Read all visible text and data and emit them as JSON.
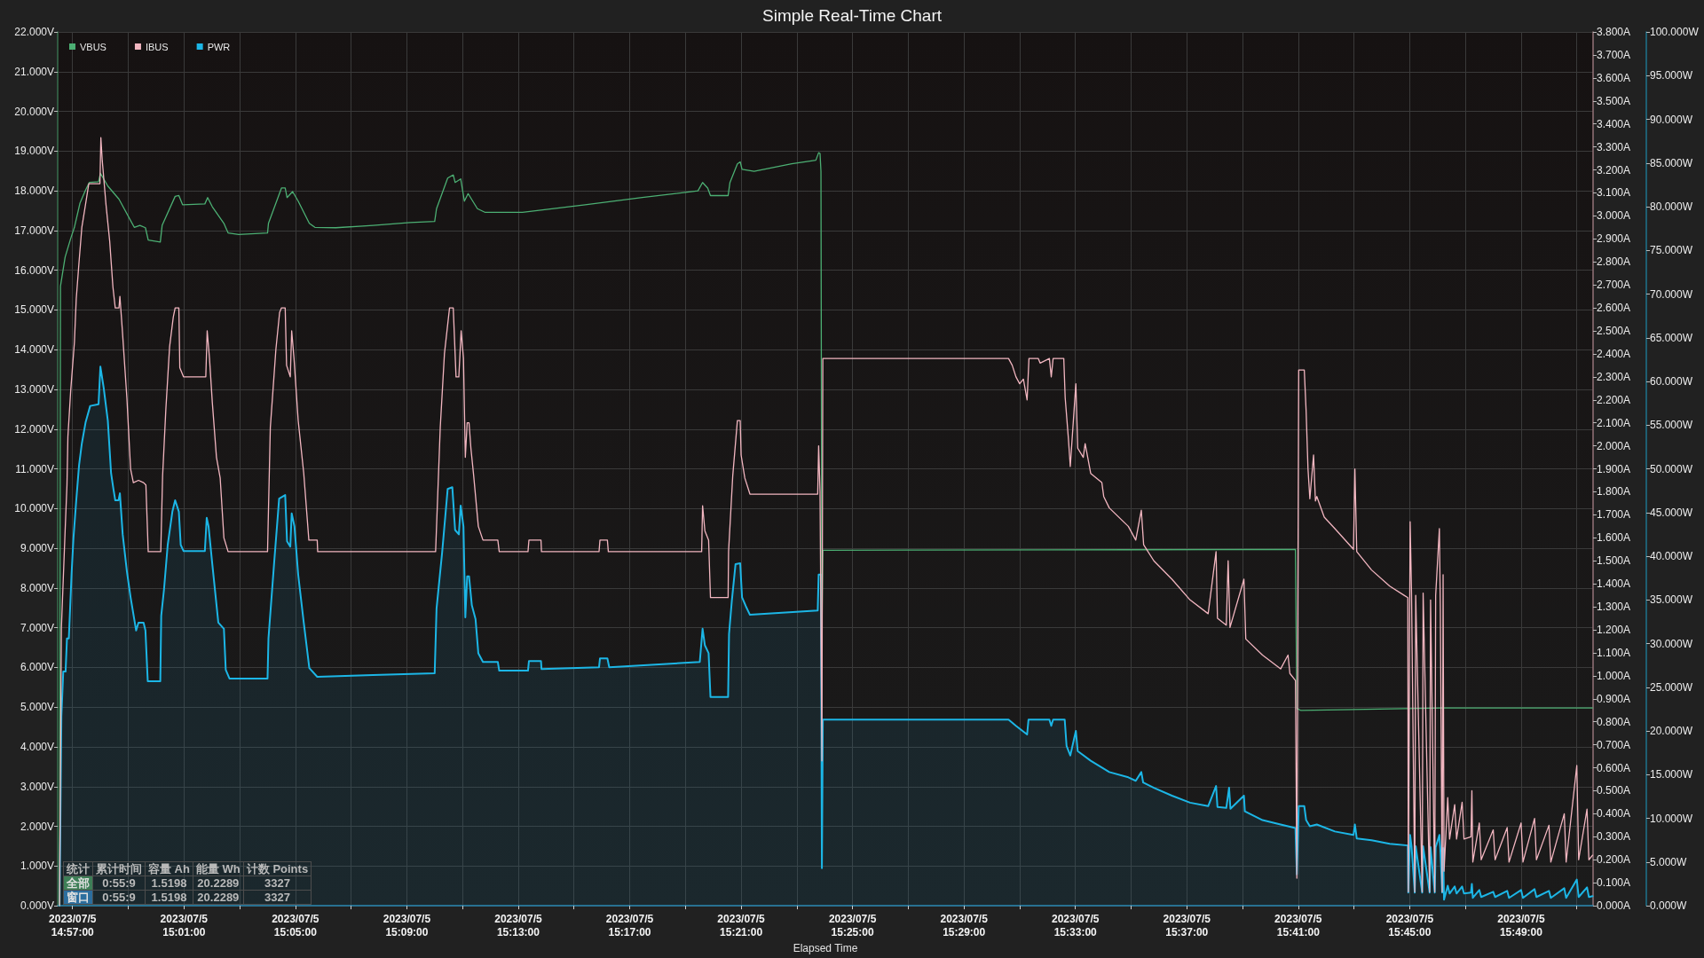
{
  "chart_data": {
    "type": "line",
    "title": "Simple Real-Time Chart",
    "xlabel": "Elapsed Time",
    "xlim": [
      "2023-07-05T14:56:28",
      "2023-07-05T15:51:35"
    ],
    "xticks": [
      {
        "value": "2023-07-05T14:57",
        "label": "2023/07/5\n14:57:00"
      },
      {
        "value": "2023-07-05T14:59",
        "label": null
      },
      {
        "value": "2023-07-05T15:01",
        "label": "2023/07/5\n15:01:00"
      },
      {
        "value": "2023-07-05T15:03",
        "label": null
      },
      {
        "value": "2023-07-05T15:05",
        "label": "2023/07/5\n15:05:00"
      },
      {
        "value": "2023-07-05T15:07",
        "label": null
      },
      {
        "value": "2023-07-05T15:09",
        "label": "2023/07/5\n15:09:00"
      },
      {
        "value": "2023-07-05T15:11",
        "label": null
      },
      {
        "value": "2023-07-05T15:13",
        "label": "2023/07/5\n15:13:00"
      },
      {
        "value": "2023-07-05T15:15",
        "label": null
      },
      {
        "value": "2023-07-05T15:17",
        "label": "2023/07/5\n15:17:00"
      },
      {
        "value": "2023-07-05T15:19",
        "label": null
      },
      {
        "value": "2023-07-05T15:21",
        "label": "2023/07/5\n15:21:00"
      },
      {
        "value": "2023-07-05T15:23",
        "label": null
      },
      {
        "value": "2023-07-05T15:25",
        "label": "2023/07/5\n15:25:00"
      },
      {
        "value": "2023-07-05T15:27",
        "label": null
      },
      {
        "value": "2023-07-05T15:29",
        "label": "2023/07/5\n15:29:00"
      },
      {
        "value": "2023-07-05T15:31",
        "label": null
      },
      {
        "value": "2023-07-05T15:33",
        "label": "2023/07/5\n15:33:00"
      },
      {
        "value": "2023-07-05T15:35",
        "label": null
      },
      {
        "value": "2023-07-05T15:37",
        "label": "2023/07/5\n15:37:00"
      },
      {
        "value": "2023-07-05T15:39",
        "label": null
      },
      {
        "value": "2023-07-05T15:41",
        "label": "2023/07/5\n15:41:00"
      },
      {
        "value": "2023-07-05T15:43",
        "label": null
      },
      {
        "value": "2023-07-05T15:45",
        "label": "2023/07/5\n15:45:00"
      },
      {
        "value": "2023-07-05T15:47",
        "label": null
      },
      {
        "value": "2023-07-05T15:49",
        "label": "2023/07/5\n15:49:00"
      },
      {
        "value": "2023-07-05T15:51",
        "label": null
      }
    ],
    "ylim": [
      0,
      22
    ],
    "yticks": [
      {
        "value": 0,
        "label": "0.000V"
      },
      {
        "value": 1,
        "label": "1.000V"
      },
      {
        "value": 2,
        "label": "2.000V"
      },
      {
        "value": 3,
        "label": "3.000V"
      },
      {
        "value": 4,
        "label": "4.000V"
      },
      {
        "value": 5,
        "label": "5.000V"
      },
      {
        "value": 6,
        "label": "6.000V"
      },
      {
        "value": 7,
        "label": "7.000V"
      },
      {
        "value": 8,
        "label": "8.000V"
      },
      {
        "value": 9,
        "label": "9.000V"
      },
      {
        "value": 10,
        "label": "10.000V"
      },
      {
        "value": 11,
        "label": "11.000V"
      },
      {
        "value": 12,
        "label": "12.000V"
      },
      {
        "value": 13,
        "label": "13.000V"
      },
      {
        "value": 14,
        "label": "14.000V"
      },
      {
        "value": 15,
        "label": "15.000V"
      },
      {
        "value": 16,
        "label": "16.000V"
      },
      {
        "value": 17,
        "label": "17.000V"
      },
      {
        "value": 18,
        "label": "18.000V"
      },
      {
        "value": 19,
        "label": "19.000V"
      },
      {
        "value": 20,
        "label": "20.000V"
      },
      {
        "value": 21,
        "label": "21.000V"
      },
      {
        "value": 22,
        "label": "22.000V"
      }
    ],
    "y2lim": [
      0,
      3.8
    ],
    "y2ticks": [
      {
        "value": 0,
        "label": "0.000A"
      },
      {
        "value": 0.1,
        "label": "0.100A"
      },
      {
        "value": 0.2,
        "label": "0.200A"
      },
      {
        "value": 0.3,
        "label": "0.300A"
      },
      {
        "value": 0.4,
        "label": "0.400A"
      },
      {
        "value": 0.5,
        "label": "0.500A"
      },
      {
        "value": 0.6,
        "label": "0.600A"
      },
      {
        "value": 0.7,
        "label": "0.700A"
      },
      {
        "value": 0.8,
        "label": "0.800A"
      },
      {
        "value": 0.9,
        "label": "0.900A"
      },
      {
        "value": 1,
        "label": "1.000A"
      },
      {
        "value": 1.1,
        "label": "1.100A"
      },
      {
        "value": 1.2,
        "label": "1.200A"
      },
      {
        "value": 1.3,
        "label": "1.300A"
      },
      {
        "value": 1.4,
        "label": "1.400A"
      },
      {
        "value": 1.5,
        "label": "1.500A"
      },
      {
        "value": 1.6,
        "label": "1.600A"
      },
      {
        "value": 1.7,
        "label": "1.700A"
      },
      {
        "value": 1.8,
        "label": "1.800A"
      },
      {
        "value": 1.9,
        "label": "1.900A"
      },
      {
        "value": 2,
        "label": "2.000A"
      },
      {
        "value": 2.1,
        "label": "2.100A"
      },
      {
        "value": 2.2,
        "label": "2.200A"
      },
      {
        "value": 2.3,
        "label": "2.300A"
      },
      {
        "value": 2.4,
        "label": "2.400A"
      },
      {
        "value": 2.5,
        "label": "2.500A"
      },
      {
        "value": 2.6,
        "label": "2.600A"
      },
      {
        "value": 2.7,
        "label": "2.700A"
      },
      {
        "value": 2.8,
        "label": "2.800A"
      },
      {
        "value": 2.9,
        "label": "2.900A"
      },
      {
        "value": 3,
        "label": "3.000A"
      },
      {
        "value": 3.1,
        "label": "3.100A"
      },
      {
        "value": 3.2,
        "label": "3.200A"
      },
      {
        "value": 3.3,
        "label": "3.300A"
      },
      {
        "value": 3.4,
        "label": "3.400A"
      },
      {
        "value": 3.5,
        "label": "3.500A"
      },
      {
        "value": 3.6,
        "label": "3.600A"
      },
      {
        "value": 3.7,
        "label": "3.700A"
      },
      {
        "value": 3.8,
        "label": "3.800A"
      }
    ],
    "y3lim": [
      0,
      100
    ],
    "y3ticks": [
      {
        "value": 0,
        "label": "0.000W"
      },
      {
        "value": 5,
        "label": "5.000W"
      },
      {
        "value": 10,
        "label": "10.000W"
      },
      {
        "value": 15,
        "label": "15.000W"
      },
      {
        "value": 20,
        "label": "20.000W"
      },
      {
        "value": 25,
        "label": "25.000W"
      },
      {
        "value": 30,
        "label": "30.000W"
      },
      {
        "value": 35,
        "label": "35.000W"
      },
      {
        "value": 40,
        "label": "40.000W"
      },
      {
        "value": 45,
        "label": "45.000W"
      },
      {
        "value": 50,
        "label": "50.000W"
      },
      {
        "value": 55,
        "label": "55.000W"
      },
      {
        "value": 60,
        "label": "60.000W"
      },
      {
        "value": 65,
        "label": "65.000W"
      },
      {
        "value": 70,
        "label": "70.000W"
      },
      {
        "value": 75,
        "label": "75.000W"
      },
      {
        "value": 80,
        "label": "80.000W"
      },
      {
        "value": 85,
        "label": "85.000W"
      },
      {
        "value": 90,
        "label": "90.000W"
      },
      {
        "value": 95,
        "label": "95.000W"
      },
      {
        "value": 100,
        "label": "100.000W"
      }
    ],
    "grid": true,
    "legend": "top left",
    "marker": "none",
    "series": [
      {
        "name": "VBUS",
        "color": "#4caf73",
        "x": [
          "2023-07-05T14:56:32",
          "2023-07-05T14:56:34",
          "2023-07-05T14:56:44",
          "2023-07-05T14:56:56",
          "2023-07-05T14:57:04",
          "2023-07-05T14:57:16",
          "2023-07-05T14:57:28",
          "2023-07-05T14:57:36",
          "2023-07-05T14:57:56",
          "2023-07-05T14:58:00",
          "2023-07-05T14:58:16",
          "2023-07-05T14:58:40",
          "2023-07-05T14:59:13",
          "2023-07-05T14:59:25",
          "2023-07-05T14:59:37",
          "2023-07-05T14:59:43",
          "2023-07-05T15:00:09",
          "2023-07-05T15:00:13",
          "2023-07-05T15:00:41",
          "2023-07-05T15:00:49",
          "2023-07-05T15:00:57",
          "2023-07-05T15:01:45",
          "2023-07-05T15:01:51",
          "2023-07-05T15:02:01",
          "2023-07-05T15:02:26",
          "2023-07-05T15:02:35",
          "2023-07-05T15:02:58",
          "2023-07-05T15:04:00",
          "2023-07-05T15:04:02",
          "2023-07-05T15:04:30",
          "2023-07-05T15:04:38",
          "2023-07-05T15:04:42",
          "2023-07-05T15:04:54",
          "2023-07-05T15:05:06",
          "2023-07-05T15:05:30",
          "2023-07-05T15:05:42",
          "2023-07-05T15:06:27",
          "2023-07-05T15:07:47",
          "2023-07-05T15:09:07",
          "2023-07-05T15:10:00",
          "2023-07-05T15:10:04",
          "2023-07-05T15:10:28",
          "2023-07-05T15:10:40",
          "2023-07-05T15:10:44",
          "2023-07-05T15:10:56",
          "2023-07-05T15:11:04",
          "2023-07-05T15:11:12",
          "2023-07-05T15:11:32",
          "2023-07-05T15:11:48",
          "2023-07-05T15:13:09",
          "2023-07-05T15:15:24",
          "2023-07-05T15:17:27",
          "2023-07-05T15:19:27",
          "2023-07-05T15:19:37",
          "2023-07-05T15:19:48",
          "2023-07-05T15:19:54",
          "2023-07-05T15:20:32",
          "2023-07-05T15:20:36",
          "2023-07-05T15:20:52",
          "2023-07-05T15:20:58",
          "2023-07-05T15:21:02",
          "2023-07-05T15:21:28",
          "2023-07-05T15:22:49",
          "2023-07-05T15:23:41",
          "2023-07-05T15:23:47",
          "2023-07-05T15:23:50",
          "2023-07-05T15:23:52",
          "2023-07-05T15:23:54",
          "2023-07-05T15:23:56",
          "2023-07-05T15:32:00",
          "2023-07-05T15:40:54",
          "2023-07-05T15:40:57",
          "2023-07-05T15:41:05",
          "2023-07-05T15:46:14",
          "2023-07-05T15:51:34"
        ],
        "values": [
          0,
          15.6,
          16.33,
          16.8,
          17.08,
          17.69,
          18.02,
          18.21,
          18.23,
          18.44,
          18.12,
          17.79,
          17.08,
          17.13,
          17.07,
          16.76,
          16.71,
          17.13,
          17.86,
          17.88,
          17.65,
          17.67,
          17.83,
          17.6,
          17.18,
          16.94,
          16.9,
          16.94,
          17.18,
          18.07,
          18.07,
          17.83,
          17.98,
          17.74,
          17.18,
          17.08,
          17.07,
          17.13,
          17.2,
          17.23,
          17.55,
          18.32,
          18.4,
          18.21,
          18.3,
          17.74,
          17.93,
          17.55,
          17.46,
          17.46,
          17.65,
          17.83,
          18,
          18.21,
          18.07,
          17.88,
          17.88,
          18.21,
          18.68,
          18.73,
          18.54,
          18.49,
          18.68,
          18.77,
          18.96,
          18.94,
          18.49,
          6.74,
          8.95,
          8.96,
          8.97,
          4.97,
          4.92,
          4.98,
          4.98
        ]
      },
      {
        "name": "IBUS",
        "color": "#f2b6c0",
        "axis": "y2",
        "x": [
          "2023-07-05T14:56:32",
          "2023-07-05T14:56:36",
          "2023-07-05T14:56:44",
          "2023-07-05T14:56:48",
          "2023-07-05T14:56:50",
          "2023-07-05T14:56:56",
          "2023-07-05T14:57:04",
          "2023-07-05T14:57:08",
          "2023-07-05T14:57:14",
          "2023-07-05T14:57:20",
          "2023-07-05T14:57:28",
          "2023-07-05T14:57:35",
          "2023-07-05T14:57:59",
          "2023-07-05T14:58:01",
          "2023-07-05T14:58:04",
          "2023-07-05T14:58:12",
          "2023-07-05T14:58:20",
          "2023-07-05T14:58:27",
          "2023-07-05T14:58:32",
          "2023-07-05T14:58:40",
          "2023-07-05T14:58:42",
          "2023-07-05T14:58:47",
          "2023-07-05T14:58:57",
          "2023-07-05T14:59:05",
          "2023-07-05T14:59:11",
          "2023-07-05T14:59:22",
          "2023-07-05T14:59:33",
          "2023-07-05T14:59:38",
          "2023-07-05T14:59:43",
          "2023-07-05T15:00:10",
          "2023-07-05T15:00:14",
          "2023-07-05T15:00:21",
          "2023-07-05T15:00:29",
          "2023-07-05T15:00:37",
          "2023-07-05T15:00:41",
          "2023-07-05T15:00:49",
          "2023-07-05T15:00:51",
          "2023-07-05T15:00:59",
          "2023-07-05T15:01:47",
          "2023-07-05T15:01:50",
          "2023-07-05T15:01:55",
          "2023-07-05T15:02:01",
          "2023-07-05T15:02:10",
          "2023-07-05T15:02:18",
          "2023-07-05T15:02:26",
          "2023-07-05T15:02:35",
          "2023-07-05T15:04:00",
          "2023-07-05T15:04:06",
          "2023-07-05T15:04:18",
          "2023-07-05T15:04:26",
          "2023-07-05T15:04:30",
          "2023-07-05T15:04:38",
          "2023-07-05T15:04:41",
          "2023-07-05T15:04:49",
          "2023-07-05T15:04:52",
          "2023-07-05T15:04:57",
          "2023-07-05T15:05:06",
          "2023-07-05T15:05:18",
          "2023-07-05T15:05:29",
          "2023-07-05T15:05:47",
          "2023-07-05T15:05:48",
          "2023-07-05T15:10:02",
          "2023-07-05T15:10:12",
          "2023-07-05T15:10:21",
          "2023-07-05T15:10:32",
          "2023-07-05T15:10:40",
          "2023-07-05T15:10:46",
          "2023-07-05T15:10:52",
          "2023-07-05T15:10:57",
          "2023-07-05T15:11:02",
          "2023-07-05T15:11:06",
          "2023-07-05T15:11:10",
          "2023-07-05T15:11:14",
          "2023-07-05T15:11:18",
          "2023-07-05T15:11:24",
          "2023-07-05T15:11:34",
          "2023-07-05T15:11:44",
          "2023-07-05T15:12:16",
          "2023-07-05T15:12:19",
          "2023-07-05T15:13:21",
          "2023-07-05T15:13:23",
          "2023-07-05T15:13:49",
          "2023-07-05T15:13:50",
          "2023-07-05T15:15:54",
          "2023-07-05T15:15:56",
          "2023-07-05T15:16:12",
          "2023-07-05T15:16:14",
          "2023-07-05T15:19:35",
          "2023-07-05T15:19:37",
          "2023-07-05T15:19:42",
          "2023-07-05T15:19:50",
          "2023-07-05T15:19:54",
          "2023-07-05T15:20:32",
          "2023-07-05T15:20:33",
          "2023-07-05T15:20:42",
          "2023-07-05T15:20:52",
          "2023-07-05T15:20:58",
          "2023-07-05T15:21:00",
          "2023-07-05T15:21:08",
          "2023-07-05T15:21:19",
          "2023-07-05T15:23:45",
          "2023-07-05T15:23:47",
          "2023-07-05T15:23:50",
          "2023-07-05T15:23:54",
          "2023-07-05T15:23:56",
          "2023-07-05T15:30:36",
          "2023-07-05T15:30:44",
          "2023-07-05T15:30:52",
          "2023-07-05T15:31:00",
          "2023-07-05T15:31:08",
          "2023-07-05T15:31:16",
          "2023-07-05T15:31:20",
          "2023-07-05T15:31:40",
          "2023-07-05T15:31:44",
          "2023-07-05T15:32:04",
          "2023-07-05T15:32:08",
          "2023-07-05T15:32:12",
          "2023-07-05T15:32:35",
          "2023-07-05T15:32:38",
          "2023-07-05T15:32:45",
          "2023-07-05T15:32:49",
          "2023-07-05T15:33:01",
          "2023-07-05T15:33:05",
          "2023-07-05T15:33:17",
          "2023-07-05T15:33:21",
          "2023-07-05T15:33:33",
          "2023-07-05T15:33:57",
          "2023-07-05T15:34:01",
          "2023-07-05T15:34:13",
          "2023-07-05T15:34:54",
          "2023-07-05T15:35:10",
          "2023-07-05T15:35:22",
          "2023-07-05T15:35:27",
          "2023-07-05T15:35:49",
          "2023-07-05T15:36:28",
          "2023-07-05T15:37:07",
          "2023-07-05T15:37:46",
          "2023-07-05T15:38:03",
          "2023-07-05T15:38:06",
          "2023-07-05T15:38:25",
          "2023-07-05T15:38:29",
          "2023-07-05T15:38:33",
          "2023-07-05T15:39:03",
          "2023-07-05T15:39:07",
          "2023-07-05T15:39:43",
          "2023-07-05T15:40:22",
          "2023-07-05T15:40:38",
          "2023-07-05T15:40:42",
          "2023-07-05T15:40:54",
          "2023-07-05T15:40:57",
          "2023-07-05T15:41:01",
          "2023-07-05T15:41:13",
          "2023-07-05T15:41:17",
          "2023-07-05T15:41:21",
          "2023-07-05T15:41:25",
          "2023-07-05T15:41:33",
          "2023-07-05T15:41:37",
          "2023-07-05T15:41:40",
          "2023-07-05T15:41:56",
          "2023-07-05T15:42:19",
          "2023-07-05T15:42:59",
          "2023-07-05T15:43:02",
          "2023-07-05T15:43:06",
          "2023-07-05T15:43:38",
          "2023-07-05T15:44:17",
          "2023-07-05T15:44:48",
          "2023-07-05T15:44:56",
          "2023-07-05T15:44:57",
          "2023-07-05T15:45:01",
          "2023-07-05T15:45:04",
          "2023-07-05T15:45:11",
          "2023-07-05T15:45:13",
          "2023-07-05T15:45:27",
          "2023-07-05T15:45:29",
          "2023-07-05T15:45:43",
          "2023-07-05T15:45:45",
          "2023-07-05T15:45:54",
          "2023-07-05T15:45:56",
          "2023-07-05T15:46:04",
          "2023-07-05T15:46:06",
          "2023-07-05T15:46:10",
          "2023-07-05T15:46:12",
          "2023-07-05T15:46:14",
          "2023-07-05T15:46:18",
          "2023-07-05T15:46:22",
          "2023-07-05T15:46:26",
          "2023-07-05T15:46:37",
          "2023-07-05T15:46:41",
          "2023-07-05T15:46:53",
          "2023-07-05T15:46:57",
          "2023-07-05T15:47:12",
          "2023-07-05T15:47:14",
          "2023-07-05T15:47:16",
          "2023-07-05T15:47:30",
          "2023-07-05T15:47:34",
          "2023-07-05T15:48:00",
          "2023-07-05T15:48:04",
          "2023-07-05T15:48:30",
          "2023-07-05T15:48:34",
          "2023-07-05T15:49:00",
          "2023-07-05T15:49:04",
          "2023-07-05T15:49:29",
          "2023-07-05T15:49:33",
          "2023-07-05T15:50:00",
          "2023-07-05T15:50:04",
          "2023-07-05T15:50:33",
          "2023-07-05T15:50:37",
          "2023-07-05T15:51:00",
          "2023-07-05T15:51:04",
          "2023-07-05T15:51:22",
          "2023-07-05T15:51:26",
          "2023-07-05T15:51:34"
        ],
        "values": [
          0,
          1.21,
          1.63,
          1.83,
          2.04,
          2.24,
          2.45,
          2.64,
          2.8,
          2.95,
          3.05,
          3.14,
          3.14,
          3.34,
          3.24,
          3.05,
          2.89,
          2.69,
          2.6,
          2.6,
          2.65,
          2.51,
          2.21,
          1.9,
          1.84,
          1.85,
          1.84,
          1.83,
          1.54,
          1.54,
          1.87,
          2.16,
          2.43,
          2.56,
          2.6,
          2.6,
          2.34,
          2.3,
          2.3,
          2.5,
          2.38,
          2.19,
          1.95,
          1.86,
          1.6,
          1.54,
          1.54,
          2.08,
          2.42,
          2.58,
          2.6,
          2.6,
          2.35,
          2.3,
          2.5,
          2.38,
          2.11,
          1.88,
          1.59,
          1.59,
          1.54,
          1.54,
          2.08,
          2.4,
          2.6,
          2.6,
          2.3,
          2.3,
          2.5,
          2.38,
          1.95,
          2.1,
          2.1,
          1.99,
          1.87,
          1.65,
          1.59,
          1.59,
          1.54,
          1.54,
          1.59,
          1.59,
          1.54,
          1.54,
          1.59,
          1.59,
          1.54,
          1.54,
          1.74,
          1.63,
          1.59,
          1.34,
          1.34,
          1.54,
          1.87,
          2.11,
          2.11,
          1.96,
          1.86,
          1.79,
          1.79,
          2,
          1.8,
          0.63,
          2.38,
          2.38,
          2.35,
          2.3,
          2.27,
          2.29,
          2.2,
          2.38,
          2.38,
          2.36,
          2.38,
          2.3,
          2.38,
          2.38,
          2.21,
          2.03,
          1.91,
          2.27,
          1.99,
          1.95,
          2.01,
          1.88,
          1.84,
          1.78,
          1.73,
          1.65,
          1.59,
          1.72,
          1.57,
          1.5,
          1.42,
          1.33,
          1.27,
          1.54,
          1.25,
          1.22,
          1.5,
          1.21,
          1.42,
          1.16,
          1.09,
          1.03,
          1.09,
          1.01,
          0.98,
          0.12,
          2.33,
          2.33,
          2.15,
          1.9,
          1.77,
          1.96,
          1.76,
          1.78,
          1.69,
          1.64,
          1.55,
          1.9,
          1.54,
          1.46,
          1.39,
          1.35,
          1.34,
          0.06,
          1.67,
          1.36,
          0.06,
          1.35,
          0.06,
          1.36,
          0.06,
          1.33,
          0.06,
          1.35,
          1.64,
          1.3,
          0.06,
          1.44,
          0.15,
          0.31,
          0.47,
          0.29,
          0.44,
          0.29,
          0.45,
          0.29,
          0.3,
          0.5,
          0.19,
          0.36,
          0.2,
          0.33,
          0.2,
          0.34,
          0.19,
          0.36,
          0.19,
          0.38,
          0.2,
          0.35,
          0.19,
          0.4,
          0.19,
          0.61,
          0.2,
          0.42,
          0.2,
          0.22
        ]
      },
      {
        "name": "PWR",
        "type": "area",
        "color": "#1cb6e6",
        "axis": "y3",
        "x": [
          "2023-07-05T14:56:32",
          "2023-07-05T14:56:36",
          "2023-07-05T14:56:40",
          "2023-07-05T14:56:45",
          "2023-07-05T14:56:48",
          "2023-07-05T14:56:52",
          "2023-07-05T14:56:58",
          "2023-07-05T14:57:02",
          "2023-07-05T14:57:08",
          "2023-07-05T14:57:14",
          "2023-07-05T14:57:20",
          "2023-07-05T14:57:28",
          "2023-07-05T14:57:38",
          "2023-07-05T14:57:56",
          "2023-07-05T14:58:00",
          "2023-07-05T14:58:07",
          "2023-07-05T14:58:16",
          "2023-07-05T14:58:23",
          "2023-07-05T14:58:28",
          "2023-07-05T14:58:32",
          "2023-07-05T14:58:39",
          "2023-07-05T14:58:42",
          "2023-07-05T14:58:48",
          "2023-07-05T14:58:57",
          "2023-07-05T14:59:05",
          "2023-07-05T14:59:17",
          "2023-07-05T14:59:22",
          "2023-07-05T14:59:33",
          "2023-07-05T14:59:37",
          "2023-07-05T14:59:42",
          "2023-07-05T15:00:09",
          "2023-07-05T15:00:11",
          "2023-07-05T15:00:17",
          "2023-07-05T15:00:25",
          "2023-07-05T15:00:35",
          "2023-07-05T15:00:41",
          "2023-07-05T15:00:49",
          "2023-07-05T15:00:53",
          "2023-07-05T15:00:59",
          "2023-07-05T15:01:45",
          "2023-07-05T15:01:49",
          "2023-07-05T15:01:53",
          "2023-07-05T15:02:01",
          "2023-07-05T15:02:14",
          "2023-07-05T15:02:26",
          "2023-07-05T15:02:30",
          "2023-07-05T15:02:38",
          "2023-07-05T15:04:00",
          "2023-07-05T15:04:02",
          "2023-07-05T15:04:14",
          "2023-07-05T15:04:25",
          "2023-07-05T15:04:38",
          "2023-07-05T15:04:42",
          "2023-07-05T15:04:49",
          "2023-07-05T15:04:52",
          "2023-07-05T15:04:58",
          "2023-07-05T15:05:06",
          "2023-07-05T15:05:18",
          "2023-07-05T15:05:30",
          "2023-07-05T15:05:47",
          "2023-07-05T15:07:47",
          "2023-07-05T15:10:00",
          "2023-07-05T15:10:04",
          "2023-07-05T15:10:16",
          "2023-07-05T15:10:28",
          "2023-07-05T15:10:38",
          "2023-07-05T15:10:44",
          "2023-07-05T15:10:52",
          "2023-07-05T15:10:56",
          "2023-07-05T15:11:02",
          "2023-07-05T15:11:06",
          "2023-07-05T15:11:10",
          "2023-07-05T15:11:14",
          "2023-07-05T15:11:20",
          "2023-07-05T15:11:28",
          "2023-07-05T15:11:34",
          "2023-07-05T15:11:44",
          "2023-07-05T15:12:16",
          "2023-07-05T15:12:19",
          "2023-07-05T15:13:21",
          "2023-07-05T15:13:23",
          "2023-07-05T15:13:49",
          "2023-07-05T15:13:50",
          "2023-07-05T15:15:54",
          "2023-07-05T15:15:56",
          "2023-07-05T15:16:12",
          "2023-07-05T15:16:16",
          "2023-07-05T15:19:31",
          "2023-07-05T15:19:37",
          "2023-07-05T15:19:42",
          "2023-07-05T15:19:50",
          "2023-07-05T15:19:54",
          "2023-07-05T15:20:32",
          "2023-07-05T15:20:34",
          "2023-07-05T15:20:40",
          "2023-07-05T15:20:48",
          "2023-07-05T15:20:58",
          "2023-07-05T15:21:02",
          "2023-07-05T15:21:10",
          "2023-07-05T15:21:19",
          "2023-07-05T15:23:45",
          "2023-07-05T15:23:47",
          "2023-07-05T15:23:52",
          "2023-07-05T15:23:54",
          "2023-07-05T15:23:56",
          "2023-07-05T15:30:36",
          "2023-07-05T15:30:52",
          "2023-07-05T15:31:16",
          "2023-07-05T15:31:19",
          "2023-07-05T15:32:04",
          "2023-07-05T15:32:08",
          "2023-07-05T15:32:12",
          "2023-07-05T15:32:37",
          "2023-07-05T15:32:41",
          "2023-07-05T15:32:49",
          "2023-07-05T15:33:01",
          "2023-07-05T15:33:05",
          "2023-07-05T15:33:33",
          "2023-07-05T15:34:13",
          "2023-07-05T15:34:54",
          "2023-07-05T15:35:10",
          "2023-07-05T15:35:22",
          "2023-07-05T15:35:26",
          "2023-07-05T15:35:49",
          "2023-07-05T15:36:28",
          "2023-07-05T15:37:07",
          "2023-07-05T15:37:46",
          "2023-07-05T15:38:03",
          "2023-07-05T15:38:06",
          "2023-07-05T15:38:25",
          "2023-07-05T15:38:31",
          "2023-07-05T15:38:34",
          "2023-07-05T15:39:03",
          "2023-07-05T15:39:05",
          "2023-07-05T15:39:43",
          "2023-07-05T15:40:22",
          "2023-07-05T15:40:54",
          "2023-07-05T15:40:57",
          "2023-07-05T15:41:01",
          "2023-07-05T15:41:13",
          "2023-07-05T15:41:17",
          "2023-07-05T15:41:25",
          "2023-07-05T15:41:40",
          "2023-07-05T15:42:19",
          "2023-07-05T15:42:59",
          "2023-07-05T15:43:02",
          "2023-07-05T15:43:06",
          "2023-07-05T15:43:38",
          "2023-07-05T15:44:17",
          "2023-07-05T15:44:56",
          "2023-07-05T15:44:57",
          "2023-07-05T15:45:01",
          "2023-07-05T15:45:04",
          "2023-07-05T15:45:11",
          "2023-07-05T15:45:13",
          "2023-07-05T15:45:27",
          "2023-07-05T15:45:29",
          "2023-07-05T15:45:43",
          "2023-07-05T15:45:45",
          "2023-07-05T15:45:54",
          "2023-07-05T15:45:56",
          "2023-07-05T15:46:04",
          "2023-07-05T15:46:06",
          "2023-07-05T15:46:10",
          "2023-07-05T15:46:12",
          "2023-07-05T15:46:14",
          "2023-07-05T15:46:18",
          "2023-07-05T15:46:22",
          "2023-07-05T15:46:26",
          "2023-07-05T15:46:37",
          "2023-07-05T15:46:41",
          "2023-07-05T15:46:53",
          "2023-07-05T15:46:57",
          "2023-07-05T15:47:12",
          "2023-07-05T15:47:14",
          "2023-07-05T15:47:16",
          "2023-07-05T15:47:30",
          "2023-07-05T15:47:34",
          "2023-07-05T15:48:00",
          "2023-07-05T15:48:04",
          "2023-07-05T15:48:30",
          "2023-07-05T15:48:34",
          "2023-07-05T15:49:00",
          "2023-07-05T15:49:04",
          "2023-07-05T15:49:29",
          "2023-07-05T15:49:33",
          "2023-07-05T15:50:00",
          "2023-07-05T15:50:04",
          "2023-07-05T15:50:33",
          "2023-07-05T15:50:37",
          "2023-07-05T15:51:00",
          "2023-07-05T15:51:04",
          "2023-07-05T15:51:22",
          "2023-07-05T15:51:26",
          "2023-07-05T15:51:34"
        ],
        "values": [
          0,
          21.7,
          26.8,
          26.8,
          30.6,
          30.6,
          38.1,
          42.1,
          46.4,
          50.4,
          52.9,
          55.3,
          57.2,
          57.4,
          61.7,
          59.3,
          55.5,
          49.5,
          47.7,
          46.4,
          46.4,
          47.2,
          42.5,
          38.3,
          35.3,
          31.5,
          32.4,
          32.4,
          31.5,
          25.7,
          25.7,
          33.2,
          36.2,
          41.3,
          45.1,
          46.4,
          45.1,
          41.3,
          40.6,
          40.6,
          44.4,
          43.4,
          39.1,
          32.4,
          31.7,
          27,
          26,
          26,
          30.6,
          39.1,
          46.6,
          47,
          41.7,
          41.1,
          44.9,
          43.4,
          37.9,
          32.4,
          27.2,
          26.2,
          26.4,
          26.6,
          34,
          40.4,
          47.7,
          47.9,
          43,
          42.5,
          45.8,
          43.4,
          33,
          37.7,
          37.7,
          34.4,
          32.8,
          28.9,
          27.9,
          27.9,
          26.9,
          26.9,
          28,
          28,
          27.1,
          27.3,
          28.3,
          28.3,
          27.3,
          27.9,
          31.7,
          29.8,
          28.9,
          23.9,
          23.9,
          31.1,
          34.9,
          39.1,
          39.2,
          35.3,
          34.3,
          33.3,
          33.8,
          37.9,
          37.9,
          4.3,
          21.3,
          21.3,
          20.6,
          19.6,
          21.3,
          21.3,
          20.6,
          21.3,
          21.3,
          18.3,
          17.2,
          20,
          17.7,
          16.6,
          15.3,
          14.7,
          14.3,
          15.3,
          14.1,
          13.5,
          12.6,
          11.8,
          11.4,
          13.7,
          11.3,
          11.2,
          13.5,
          11.1,
          12.6,
          10.8,
          9.8,
          9.3,
          8.9,
          3.6,
          11.4,
          11.4,
          9.8,
          9.1,
          9.3,
          8.5,
          8.1,
          9.3,
          7.7,
          7.5,
          7.1,
          6.9,
          1.5,
          8.1,
          6.8,
          1.5,
          6.8,
          1.5,
          6.8,
          1.5,
          6.7,
          1.5,
          6.7,
          8.1,
          6.6,
          1.5,
          6.6,
          0.7,
          1.5,
          2.3,
          1.4,
          2.2,
          1.4,
          2.2,
          1.4,
          1.5,
          2.5,
          0.9,
          1.8,
          1,
          1.6,
          1,
          1.7,
          0.9,
          1.8,
          0.9,
          1.9,
          1,
          1.7,
          0.9,
          2,
          0.9,
          3,
          1,
          2.1,
          1,
          1.1
        ]
      }
    ],
    "annotations": [
      "统计",
      "累计时间",
      "容量 Ah",
      "能量 Wh",
      "计数 Points",
      "全部",
      "0:55:9",
      "1.5198",
      "20.2289",
      "3327",
      "窗口",
      "0:55:9",
      "1.5198",
      "20.2289",
      "3327"
    ]
  }
}
